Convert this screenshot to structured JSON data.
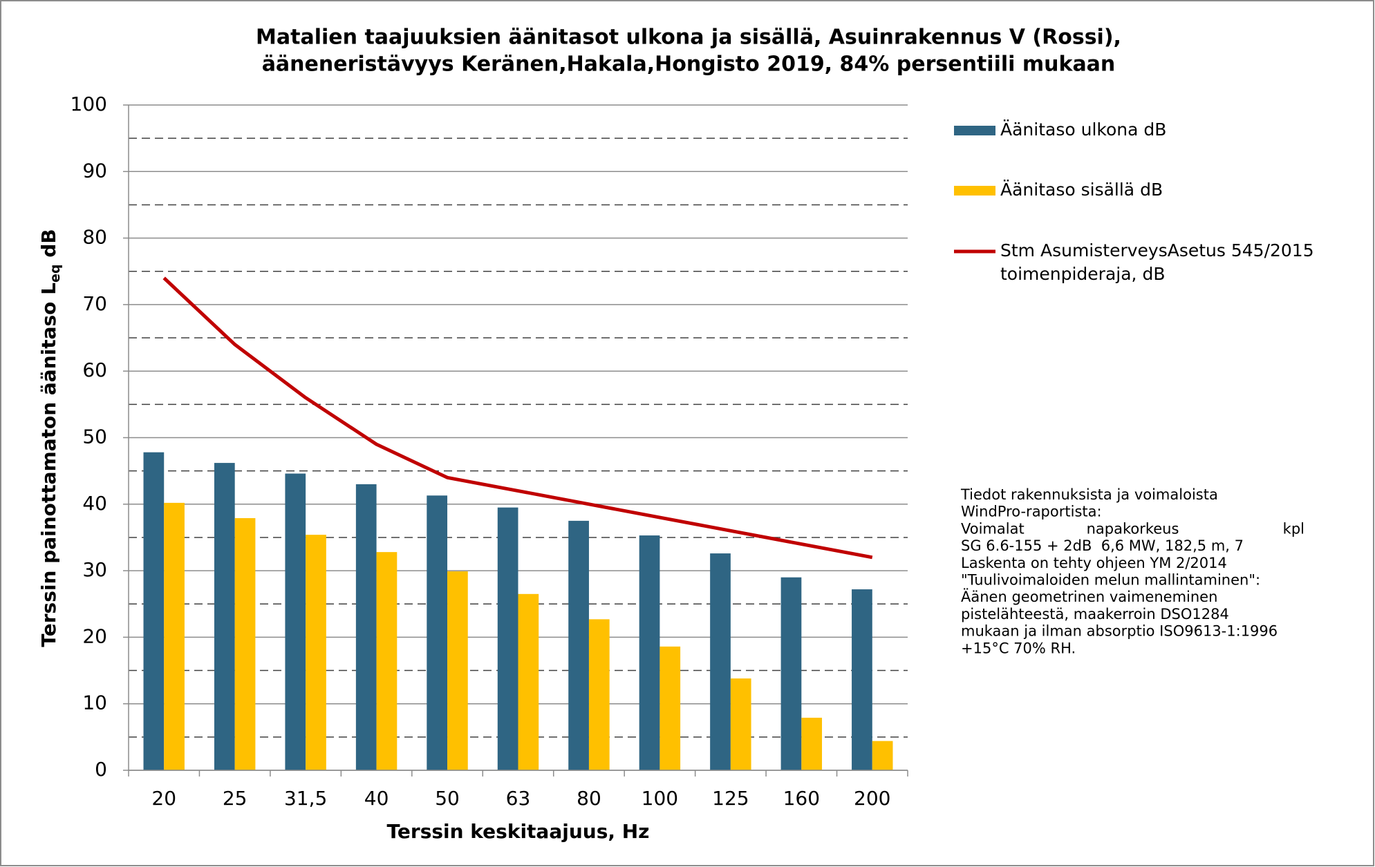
{
  "chart_data": {
    "type": "bar",
    "title": [
      "Matalien taajuuksien äänitasot ulkona ja sisällä, Asuinrakennus V (Rossi),",
      "ääneneristävyys Keränen,Hakala,Hongisto 2019, 84% persentiili mukaan"
    ],
    "xlabel": "Terssin keskitaajuus, Hz",
    "ylabel": {
      "text": "Terssin painottamaton äänitaso L",
      "sub": "eq",
      "unit": " dB"
    },
    "categories": [
      "20",
      "25",
      "31,5",
      "40",
      "50",
      "63",
      "80",
      "100",
      "125",
      "160",
      "200"
    ],
    "series": [
      {
        "name": "Äänitaso ulkona dB",
        "type": "bar",
        "color": "#2f6583",
        "values": [
          47.8,
          46.2,
          44.6,
          43.0,
          41.3,
          39.5,
          37.5,
          35.3,
          32.6,
          29.0,
          27.2
        ]
      },
      {
        "name": "Äänitaso sisällä dB",
        "type": "bar",
        "color": "#ffc000",
        "values": [
          40.2,
          37.9,
          35.4,
          32.8,
          29.9,
          26.5,
          22.7,
          18.6,
          13.8,
          7.9,
          4.4
        ]
      },
      {
        "name": [
          "Stm AsumisterveysAsetus 545/2015",
          "toimenpideraja, dB"
        ],
        "type": "line",
        "color": "#c00000",
        "values": [
          74,
          64,
          56,
          49,
          44,
          42,
          40,
          38,
          36,
          34,
          32
        ]
      }
    ],
    "ylim": [
      0,
      100
    ],
    "yticks": [
      0,
      10,
      20,
      30,
      40,
      50,
      60,
      70,
      80,
      90,
      100
    ],
    "minor_yticks": [
      5,
      15,
      25,
      35,
      45,
      55,
      65,
      75,
      85,
      95
    ],
    "grid": true,
    "legend": "right",
    "annotation": [
      [
        "Tiedot rakennuksista ja voimaloista"
      ],
      [
        "WindPro-raportista:"
      ],
      [
        "Voimalat",
        "napakorkeus",
        "kpl"
      ],
      [
        "SG 6.6-155 + 2dB  6,6 MW, 182,5 m, 7"
      ],
      [
        "Laskenta on tehty ohjeen YM 2/2014"
      ],
      [
        "\"Tuulivoimaloiden melun mallintaminen\":"
      ],
      [
        "Äänen geometrinen vaimeneminen"
      ],
      [
        "pistelähteestä, maakerroin DSO1284"
      ],
      [
        "mukaan ja ilman absorptio ISO9613-1:1996"
      ],
      [
        "+15°C 70% RH."
      ]
    ]
  }
}
